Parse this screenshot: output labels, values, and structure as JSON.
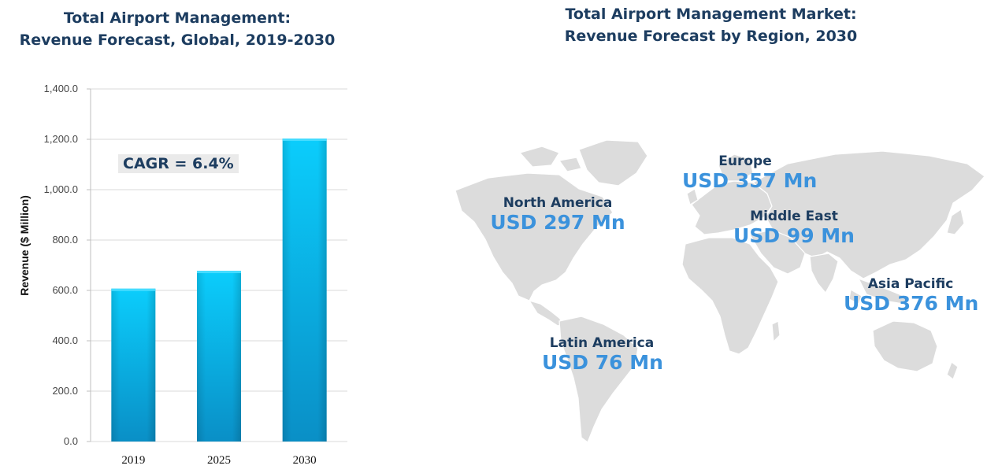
{
  "left_title": "Total Airport Management:\nRevenue Forecast, Global, 2019-2030",
  "right_title": "Total Airport Management Market:\nRevenue Forecast by Region, 2030",
  "cagr_label": "CAGR = 6.4%",
  "colors": {
    "title": "#1d3d60",
    "value_blue": "#3b92dc",
    "bar_top": "#0bcdfc",
    "bar_bottom": "#0a8fc6",
    "map": "#dcdcdc"
  },
  "chart_data": {
    "type": "bar",
    "categories": [
      "2019",
      "2025",
      "2030"
    ],
    "values": [
      607,
      678,
      1203
    ],
    "title": "Total Airport Management: Revenue Forecast, Global, 2019-2030",
    "xlabel": "",
    "ylabel": "Revenue ($ Million)",
    "ylim": [
      0,
      1400
    ],
    "yticks": [
      "0.0",
      "200.0",
      "400.0",
      "600.0",
      "800.0",
      "1,000.0",
      "1,200.0",
      "1,400.0"
    ],
    "grid": true,
    "annotation": "CAGR = 6.4%"
  },
  "regions": [
    {
      "name": "Europe",
      "value": "USD 357 Mn"
    },
    {
      "name": "North America",
      "value": "USD 297 Mn"
    },
    {
      "name": "Middle East",
      "value": "USD 99 Mn"
    },
    {
      "name": "Asia Pacific",
      "value": "USD 376 Mn"
    },
    {
      "name": "Latin America",
      "value": "USD 76 Mn"
    }
  ]
}
